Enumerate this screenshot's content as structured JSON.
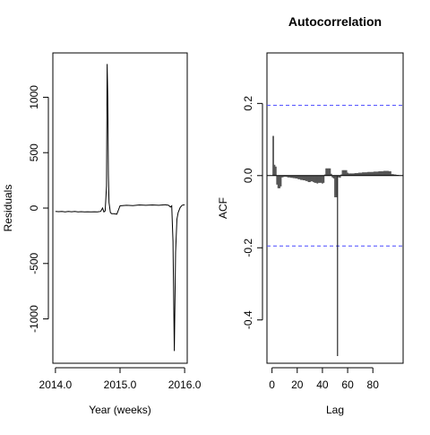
{
  "chart_data": [
    {
      "type": "line",
      "title": "",
      "xlabel": "Year (weeks)",
      "ylabel": "Residuals",
      "x_ticks": [
        2014.0,
        2015.0,
        2016.0
      ],
      "x_tick_labels": [
        "2014.0",
        "2015.0",
        "2016.0"
      ],
      "y_ticks": [
        -1000,
        -500,
        0,
        500,
        1000
      ],
      "y_tick_labels": [
        "-1000",
        "-500",
        "0",
        "500",
        "1000"
      ],
      "xlim": [
        2013.96,
        2016.04
      ],
      "ylim": [
        -1400,
        1400
      ],
      "series": [
        {
          "x": [
            2014.0,
            2014.05,
            2014.1,
            2014.15,
            2014.2,
            2014.25,
            2014.3,
            2014.35,
            2014.4,
            2014.45,
            2014.5,
            2014.55,
            2014.6,
            2014.65,
            2014.7,
            2014.73,
            2014.75,
            2014.77,
            2014.79,
            2014.8,
            2014.81,
            2014.82,
            2014.83,
            2014.85,
            2014.87,
            2014.9,
            2014.95,
            2015.0,
            2015.1,
            2015.2,
            2015.3,
            2015.4,
            2015.5,
            2015.6,
            2015.7,
            2015.75,
            2015.78,
            2015.8,
            2015.82,
            2015.84,
            2015.86,
            2015.88,
            2015.9,
            2015.93,
            2015.96,
            2016.0
          ],
          "y": [
            -30,
            -32,
            -30,
            -34,
            -30,
            -33,
            -31,
            -35,
            -32,
            -34,
            -33,
            -35,
            -33,
            -34,
            -30,
            0,
            -35,
            -25,
            200,
            1300,
            1000,
            300,
            50,
            -40,
            -50,
            -50,
            -55,
            20,
            25,
            23,
            28,
            25,
            28,
            25,
            30,
            25,
            10,
            20,
            -300,
            -1290,
            -400,
            -100,
            -40,
            5,
            25,
            30
          ]
        }
      ]
    },
    {
      "type": "bar",
      "title": "Autocorrelation",
      "xlabel": "Lag",
      "ylabel": "ACF",
      "x_ticks": [
        0,
        20,
        40,
        60,
        80
      ],
      "x_tick_labels": [
        "0",
        "20",
        "40",
        "60",
        "80"
      ],
      "y_ticks": [
        -0.4,
        -0.2,
        0.0,
        0.2
      ],
      "y_tick_labels": [
        "-0.4",
        "-0.2",
        "0.0",
        "0.2"
      ],
      "xlim": [
        -4,
        104
      ],
      "ylim": [
        -0.52,
        0.34
      ],
      "confidence_band": 0.195,
      "lags": [
        1,
        2,
        3,
        4,
        5,
        6,
        7,
        8,
        9,
        10,
        11,
        12,
        13,
        14,
        15,
        16,
        17,
        18,
        19,
        20,
        21,
        22,
        23,
        24,
        25,
        26,
        27,
        28,
        29,
        30,
        31,
        32,
        33,
        34,
        35,
        36,
        37,
        38,
        39,
        40,
        41,
        42,
        43,
        44,
        45,
        46,
        47,
        48,
        49,
        50,
        51,
        52,
        53,
        54,
        55,
        56,
        57,
        58,
        59,
        60,
        61,
        62,
        63,
        64,
        65,
        66,
        67,
        68,
        69,
        70,
        71,
        72,
        73,
        74,
        75,
        76,
        77,
        78,
        79,
        80,
        81,
        82,
        83,
        84,
        85,
        86,
        87,
        88,
        89,
        90,
        91,
        92,
        93,
        94,
        95,
        96,
        97,
        98,
        99,
        100
      ],
      "values": [
        0.11,
        0.03,
        0.025,
        -0.025,
        -0.035,
        -0.035,
        -0.03,
        -0.005,
        -0.004,
        -0.003,
        -0.003,
        -0.004,
        -0.005,
        -0.005,
        -0.006,
        -0.006,
        -0.007,
        -0.007,
        -0.008,
        -0.008,
        -0.01,
        -0.01,
        -0.012,
        -0.012,
        -0.013,
        -0.013,
        -0.015,
        -0.015,
        -0.018,
        -0.018,
        -0.016,
        -0.016,
        -0.018,
        -0.02,
        -0.02,
        -0.022,
        -0.02,
        -0.02,
        -0.02,
        -0.022,
        -0.02,
        0.003,
        0.02,
        0.02,
        0.02,
        0.02,
        0.005,
        -0.005,
        -0.008,
        -0.06,
        -0.06,
        -0.5,
        -0.005,
        -0.006,
        0.003,
        0.015,
        0.015,
        0.015,
        0.015,
        0.008,
        0.006,
        0.006,
        0.006,
        0.006,
        0.006,
        0.007,
        0.007,
        0.007,
        0.008,
        0.008,
        0.008,
        0.009,
        0.009,
        0.009,
        0.009,
        0.01,
        0.01,
        0.01,
        0.01,
        0.01,
        0.011,
        0.011,
        0.011,
        0.011,
        0.012,
        0.012,
        0.012,
        0.012,
        0.013,
        0.013,
        0.013,
        0.013,
        0.012,
        0.012,
        0.004,
        0.004,
        0.003,
        0.003,
        0.002,
        0.002
      ],
      "colors": {
        "bars": "#555555",
        "band": "#4a4aff",
        "zero": "#000000"
      }
    }
  ]
}
